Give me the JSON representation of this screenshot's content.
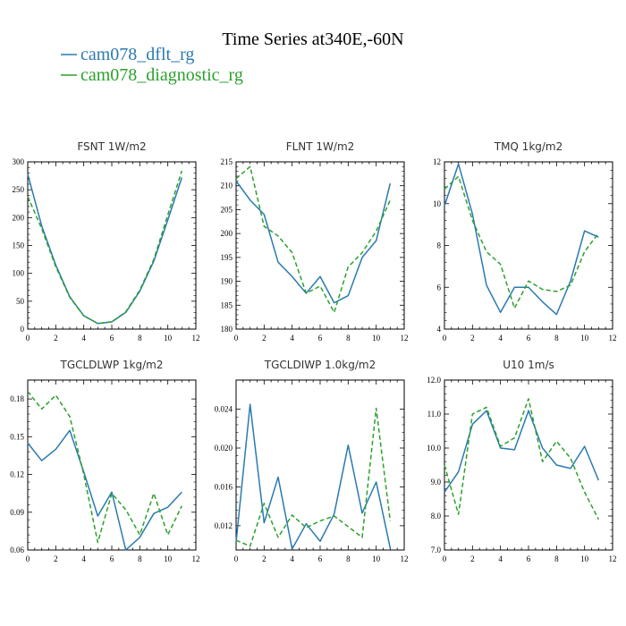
{
  "title": "Time Series at340E,-60N",
  "legend": [
    {
      "name": "cam078_dflt_rg",
      "color": "#2a7ab0",
      "dash": "solid"
    },
    {
      "name": "cam078_diagnostic_rg",
      "color": "#2ca02c",
      "dash": "dashed"
    }
  ],
  "chart_data": [
    {
      "type": "line",
      "title": "FSNT   1W/m2",
      "xlim": [
        0,
        12
      ],
      "xticks": [
        0,
        2,
        4,
        6,
        8,
        10,
        12
      ],
      "ylim": [
        0,
        300
      ],
      "yticks": [
        "0",
        "50",
        "100",
        "150",
        "200",
        "250",
        "300"
      ],
      "x": [
        0,
        1,
        2,
        3,
        4,
        5,
        6,
        7,
        8,
        9,
        10,
        11
      ],
      "series": [
        {
          "name": "cam078_dflt_rg",
          "values": [
            278,
            185,
            115,
            58,
            24,
            10,
            13,
            30,
            68,
            122,
            196,
            272
          ]
        },
        {
          "name": "cam078_diagnostic_rg",
          "values": [
            238,
            180,
            112,
            57,
            24,
            10,
            13,
            31,
            70,
            125,
            205,
            284
          ]
        }
      ]
    },
    {
      "type": "line",
      "title": "FLNT   1W/m2",
      "xlim": [
        0,
        12
      ],
      "xticks": [
        0,
        2,
        4,
        6,
        8,
        10,
        12
      ],
      "ylim": [
        180,
        215
      ],
      "yticks": [
        "180",
        "185",
        "190",
        "195",
        "200",
        "205",
        "210",
        "215"
      ],
      "x": [
        0,
        1,
        2,
        3,
        4,
        5,
        6,
        7,
        8,
        9,
        10,
        11
      ],
      "series": [
        {
          "name": "cam078_dflt_rg",
          "values": [
            211,
            207,
            204,
            194,
            191,
            187.5,
            191,
            185.5,
            187,
            195,
            198.5,
            210.5
          ]
        },
        {
          "name": "cam078_diagnostic_rg",
          "values": [
            211.5,
            214,
            201.5,
            199.5,
            196,
            187.5,
            189,
            183.5,
            193,
            196,
            200.5,
            207
          ]
        }
      ]
    },
    {
      "type": "line",
      "title": "TMQ   1kg/m2",
      "xlim": [
        0,
        12
      ],
      "xticks": [
        0,
        2,
        4,
        6,
        8,
        10,
        12
      ],
      "ylim": [
        4,
        12
      ],
      "yticks": [
        "4",
        "6",
        "8",
        "10",
        "12"
      ],
      "x": [
        0,
        1,
        2,
        3,
        4,
        5,
        6,
        7,
        8,
        9,
        10,
        11
      ],
      "series": [
        {
          "name": "cam078_dflt_rg",
          "values": [
            9.9,
            11.9,
            9.5,
            6.1,
            4.8,
            6.0,
            6.0,
            5.3,
            4.7,
            6.3,
            8.7,
            8.4
          ]
        },
        {
          "name": "cam078_diagnostic_rg",
          "values": [
            10.7,
            11.3,
            9.2,
            7.7,
            7.1,
            5.0,
            6.3,
            5.9,
            5.8,
            6.1,
            7.7,
            8.6
          ]
        }
      ]
    },
    {
      "type": "line",
      "title": "TGCLDLWP   1kg/m2",
      "xlim": [
        0,
        12
      ],
      "xticks": [
        0,
        2,
        4,
        6,
        8,
        10,
        12
      ],
      "ylim": [
        0.06,
        0.195
      ],
      "yticks": [
        "0.06",
        "0.09",
        "0.12",
        "0.15",
        "0.18"
      ],
      "x": [
        0,
        1,
        2,
        3,
        4,
        5,
        6,
        7,
        8,
        9,
        10,
        11
      ],
      "series": [
        {
          "name": "cam078_dflt_rg",
          "values": [
            0.145,
            0.131,
            0.14,
            0.155,
            0.122,
            0.087,
            0.106,
            0.06,
            0.07,
            0.089,
            0.094,
            0.106
          ]
        },
        {
          "name": "cam078_diagnostic_rg",
          "values": [
            0.186,
            0.172,
            0.183,
            0.166,
            0.12,
            0.066,
            0.105,
            0.092,
            0.072,
            0.105,
            0.072,
            0.095
          ]
        }
      ]
    },
    {
      "type": "line",
      "title": "TGCLDIWP   1.0kg/m2",
      "xlim": [
        0,
        12
      ],
      "xticks": [
        0,
        2,
        4,
        6,
        8,
        10,
        12
      ],
      "ylim": [
        0.0095,
        0.027
      ],
      "yticks": [
        "0.012",
        "0.016",
        "0.020",
        "0.024"
      ],
      "x": [
        0,
        1,
        2,
        3,
        4,
        5,
        6,
        7,
        8,
        9,
        10,
        11
      ],
      "series": [
        {
          "name": "cam078_dflt_rg",
          "values": [
            0.0103,
            0.0245,
            0.0123,
            0.017,
            0.0096,
            0.0122,
            0.0104,
            0.0132,
            0.0203,
            0.0133,
            0.0165,
            0.0097
          ]
        },
        {
          "name": "cam078_diagnostic_rg",
          "values": [
            0.0105,
            0.0099,
            0.0143,
            0.0108,
            0.0131,
            0.0118,
            0.0125,
            0.013,
            0.0119,
            0.0108,
            0.0241,
            0.0125
          ]
        }
      ]
    },
    {
      "type": "line",
      "title": "U10   1m/s",
      "xlim": [
        0,
        12
      ],
      "xticks": [
        0,
        2,
        4,
        6,
        8,
        10,
        12
      ],
      "ylim": [
        7.0,
        12.0
      ],
      "yticks": [
        "7.0",
        "8.0",
        "9.0",
        "10.0",
        "11.0",
        "12.0"
      ],
      "x": [
        0,
        1,
        2,
        3,
        4,
        5,
        6,
        7,
        8,
        9,
        10,
        11
      ],
      "series": [
        {
          "name": "cam078_dflt_rg",
          "values": [
            8.7,
            9.3,
            10.7,
            11.1,
            10.0,
            9.95,
            11.1,
            10.0,
            9.5,
            9.4,
            10.05,
            9.05
          ]
        },
        {
          "name": "cam078_diagnostic_rg",
          "values": [
            9.5,
            8.05,
            11.0,
            11.2,
            10.05,
            10.3,
            11.45,
            9.6,
            10.2,
            9.7,
            8.7,
            7.9
          ]
        }
      ]
    }
  ]
}
